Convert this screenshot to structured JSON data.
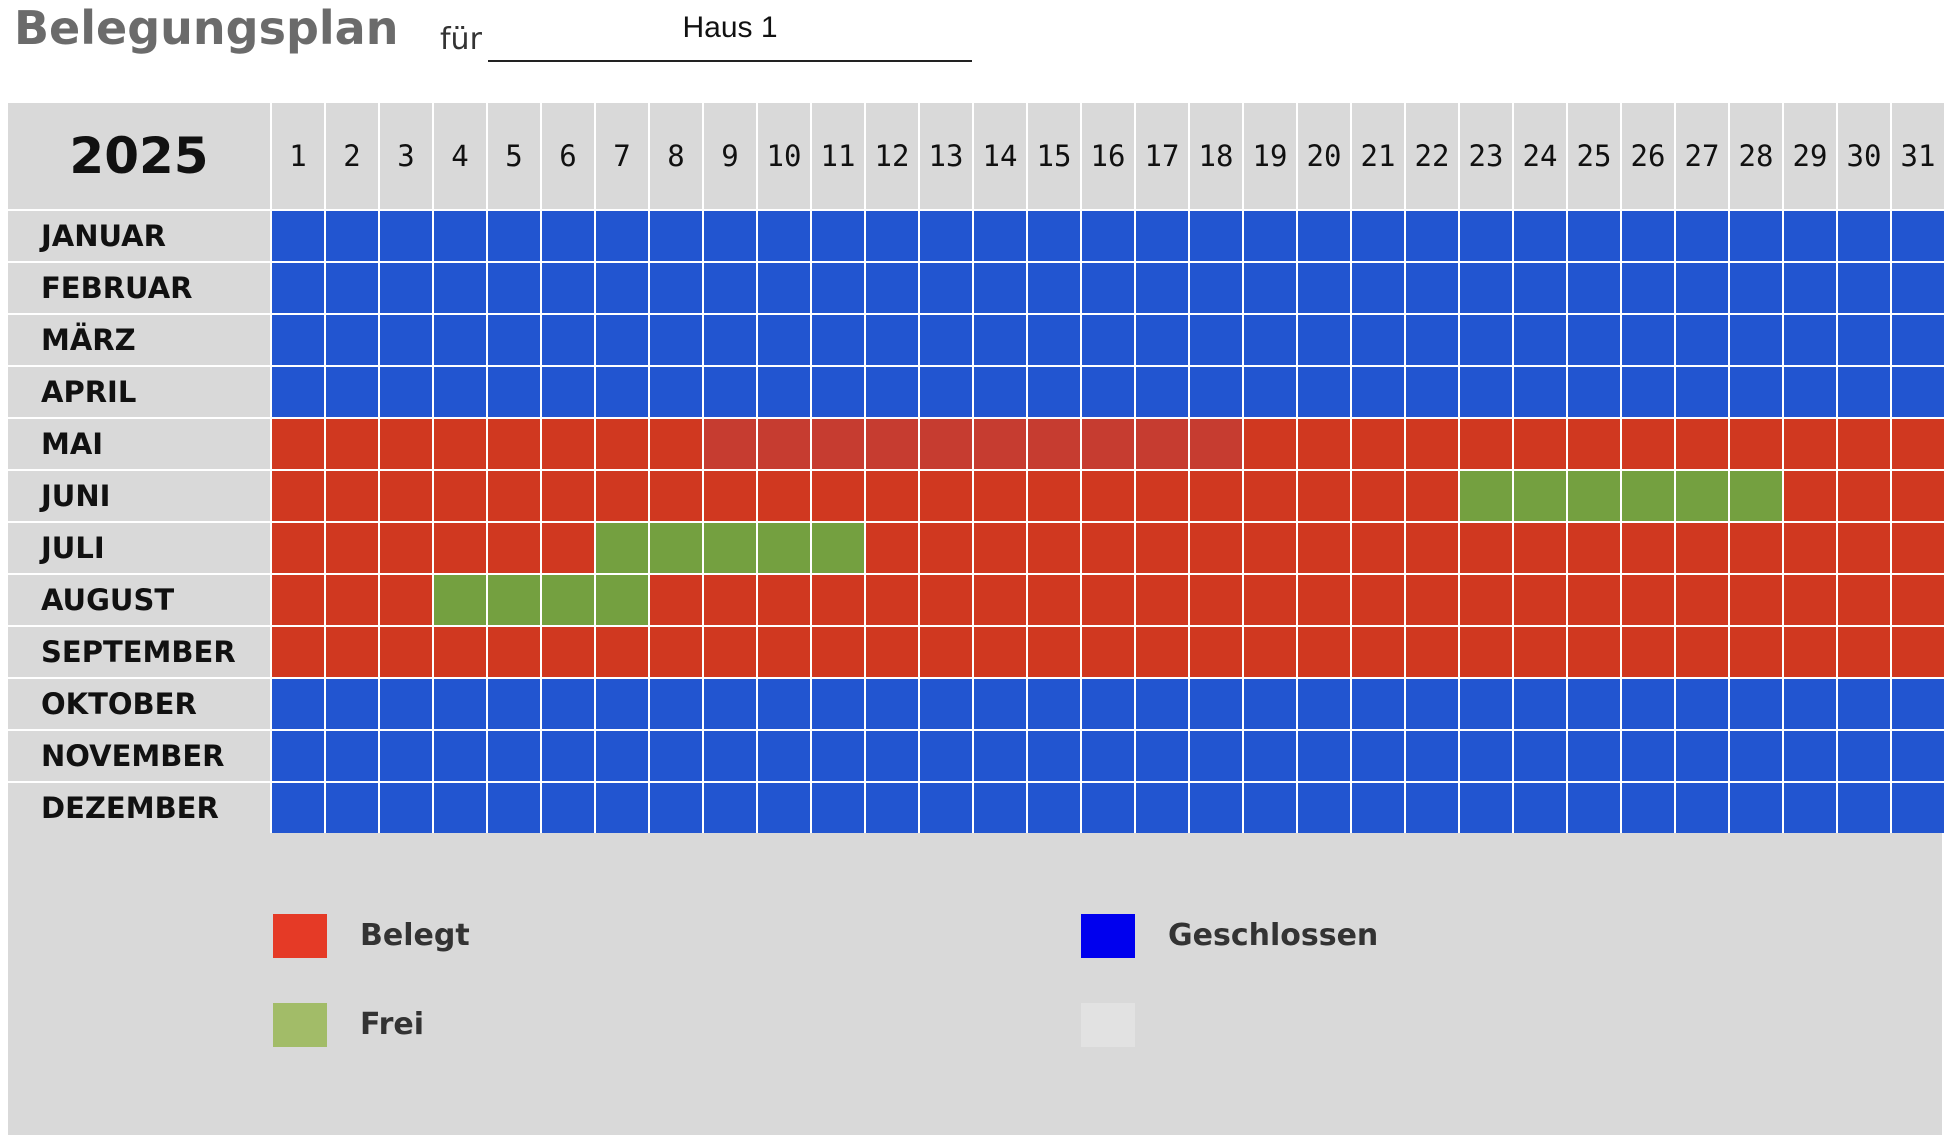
{
  "header": {
    "title": "Belegungsplan",
    "fuer_label": "für",
    "haus_value": "Haus 1"
  },
  "calendar": {
    "year": "2025",
    "days": [
      "1",
      "2",
      "3",
      "4",
      "5",
      "6",
      "7",
      "8",
      "9",
      "10",
      "11",
      "12",
      "13",
      "14",
      "15",
      "16",
      "17",
      "18",
      "19",
      "20",
      "21",
      "22",
      "23",
      "24",
      "25",
      "26",
      "27",
      "28",
      "29",
      "30",
      "31"
    ],
    "colors": {
      "G": "#2255d0",
      "B": "#d03820",
      "F": "#74a040",
      "M": "#c63c30"
    },
    "months": [
      {
        "name": "JANUAR",
        "cells": "GGGGGGGGGGGGGGGGGGGGGGGGGGGGGGG"
      },
      {
        "name": "FEBRUAR",
        "cells": "GGGGGGGGGGGGGGGGGGGGGGGGGGGGGGG"
      },
      {
        "name": "MÄRZ",
        "cells": "GGGGGGGGGGGGGGGGGGGGGGGGGGGGGGG"
      },
      {
        "name": "APRIL",
        "cells": "GGGGGGGGGGGGGGGGGGGGGGGGGGGGGGG"
      },
      {
        "name": "MAI",
        "cells": "BBBBBBBBMMMMMMMMMMBBBBBBBBBBBBB"
      },
      {
        "name": "JUNI",
        "cells": "BBBBBBBBBBBBBBBBBBBBBBFFFFFFBBB"
      },
      {
        "name": "JULI",
        "cells": "BBBBBBFFFFFBBBBBBBBBBBBBBBBBBBB"
      },
      {
        "name": "AUGUST",
        "cells": "BBBFFFFBBBBBBBBBBBBBBBBBBBBBBBB"
      },
      {
        "name": "SEPTEMBER",
        "cells": "BBBBBBBBBBBBBBBBBBBBBBBBBBBBBBB"
      },
      {
        "name": "OKTOBER",
        "cells": "GGGGGGGGGGGGGGGGGGGGGGGGGGGGGGG"
      },
      {
        "name": "NOVEMBER",
        "cells": "GGGGGGGGGGGGGGGGGGGGGGGGGGGGGGG"
      },
      {
        "name": "DEZEMBER",
        "cells": "GGGGGGGGGGGGGGGGGGGGGGGGGGGGGGG"
      }
    ]
  },
  "legend": {
    "belegt": {
      "label": "Belegt",
      "color": "#e53a26"
    },
    "frei": {
      "label": "Frei",
      "color": "#a2bc68"
    },
    "geschlossen": {
      "label": "Geschlossen",
      "color": "#0000ee"
    },
    "empty": {
      "label": "",
      "color": "#e2e2e2"
    }
  }
}
